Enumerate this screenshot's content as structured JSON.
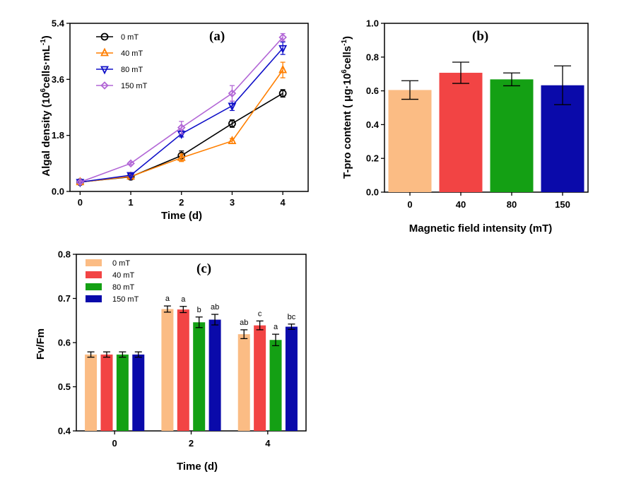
{
  "chart_data": [
    {
      "type": "line",
      "title": "(a)",
      "xlabel": "Time (d)",
      "ylabel_main": "Algal density (10",
      "ylabel_sup": "6",
      "ylabel_mid": "cells·mL",
      "ylabel_sup2": "-1",
      "ylabel_end": ")",
      "x": [
        0,
        1,
        2,
        3,
        4
      ],
      "x_ticks": [
        "0",
        "1",
        "2",
        "3",
        "4"
      ],
      "xlim": [
        -0.2,
        4.5
      ],
      "ylim": [
        0,
        5.4
      ],
      "y_ticks": [
        0,
        1.8,
        3.6,
        5.4
      ],
      "y_tick_labels": [
        "0.0",
        "1.8",
        "3.6",
        "5.4"
      ],
      "legend_position": "top-left",
      "series": [
        {
          "name": "0 mT",
          "color": "#000000",
          "marker": "circle",
          "values": [
            0.3,
            0.47,
            1.15,
            2.18,
            3.15
          ],
          "errors": [
            0.03,
            0.04,
            0.15,
            0.12,
            0.12
          ]
        },
        {
          "name": "40 mT",
          "color": "#ff7f00",
          "marker": "triangle-up",
          "values": [
            0.3,
            0.48,
            1.08,
            1.62,
            3.9
          ],
          "errors": [
            0.03,
            0.04,
            0.12,
            0.08,
            0.25
          ]
        },
        {
          "name": "80 mT",
          "color": "#1010c8",
          "marker": "triangle-down",
          "values": [
            0.3,
            0.52,
            1.85,
            2.75,
            4.6
          ],
          "errors": [
            0.03,
            0.06,
            0.1,
            0.15,
            0.2
          ]
        },
        {
          "name": "150 mT",
          "color": "#b266d6",
          "marker": "diamond",
          "values": [
            0.3,
            0.9,
            2.05,
            3.15,
            4.95
          ],
          "errors": [
            0.03,
            0.04,
            0.2,
            0.25,
            0.12
          ]
        }
      ]
    },
    {
      "type": "bar",
      "title": "(b)",
      "xlabel": "Magnetic field intensity (mT)",
      "ylabel_main": "T-pro content ( μg·10",
      "ylabel_sup": "6",
      "ylabel_mid": "cells",
      "ylabel_sup2": "-1",
      "ylabel_end": ")",
      "categories": [
        "0",
        "40",
        "80",
        "150"
      ],
      "values": [
        0.605,
        0.707,
        0.668,
        0.633
      ],
      "errors": [
        0.055,
        0.063,
        0.038,
        0.115
      ],
      "colors": [
        "#fbbc84",
        "#f24444",
        "#14a014",
        "#0a0aaa"
      ],
      "ylim": [
        0,
        1.0
      ],
      "y_ticks": [
        0,
        0.2,
        0.4,
        0.6,
        0.8,
        1.0
      ],
      "y_tick_labels": [
        "0.0",
        "0.2",
        "0.4",
        "0.6",
        "0.8",
        "1.0"
      ]
    },
    {
      "type": "bar",
      "title": "(c)",
      "xlabel": "Time (d)",
      "ylabel": "Fv/Fm",
      "categories": [
        "0",
        "2",
        "4"
      ],
      "ylim": [
        0.4,
        0.8
      ],
      "y_ticks": [
        0.4,
        0.5,
        0.6,
        0.7,
        0.8
      ],
      "y_tick_labels": [
        "0.4",
        "0.5",
        "0.6",
        "0.7",
        "0.8"
      ],
      "legend_position": "top-left",
      "series": [
        {
          "name": "0 mT",
          "color": "#fbbc84",
          "values": [
            0.573,
            0.676,
            0.619
          ],
          "errors": [
            0.006,
            0.007,
            0.01
          ],
          "labels": [
            "",
            "a",
            "ab"
          ]
        },
        {
          "name": "40 mT",
          "color": "#f24444",
          "values": [
            0.573,
            0.675,
            0.639
          ],
          "errors": [
            0.006,
            0.007,
            0.01
          ],
          "labels": [
            "",
            "a",
            "c"
          ]
        },
        {
          "name": "80 mT",
          "color": "#14a014",
          "values": [
            0.573,
            0.646,
            0.606
          ],
          "errors": [
            0.006,
            0.012,
            0.013
          ],
          "labels": [
            "",
            "b",
            "a"
          ]
        },
        {
          "name": "150 mT",
          "color": "#0a0aaa",
          "values": [
            0.573,
            0.652,
            0.636
          ],
          "errors": [
            0.006,
            0.012,
            0.006
          ],
          "labels": [
            "",
            "ab",
            "bc"
          ]
        }
      ]
    }
  ]
}
